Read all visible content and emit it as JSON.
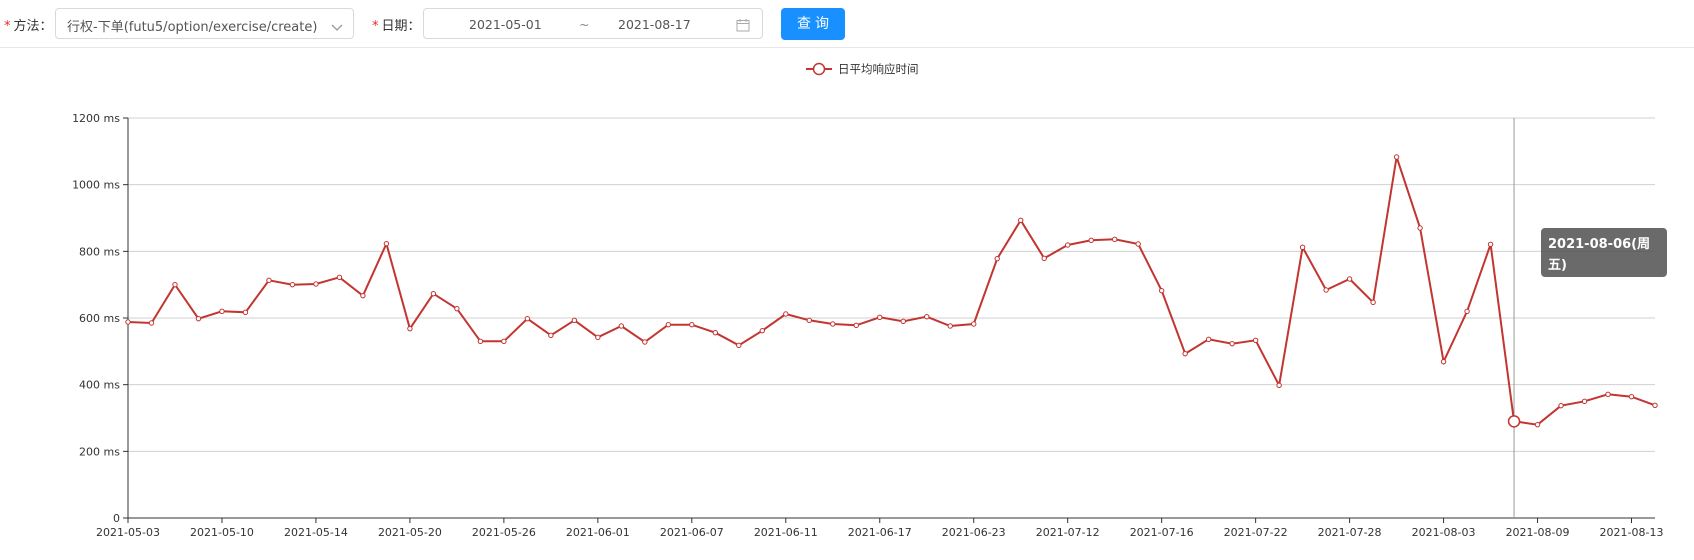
{
  "form": {
    "method_label": "方法：",
    "method_value": "行权-下单(futu5/option/exercise/create)",
    "date_label": "日期：",
    "date_start": "2021-05-01",
    "date_sep": "~",
    "date_end": "2021-08-17",
    "query_button": "查询",
    "required_mark": "*"
  },
  "tooltip": {
    "date": "2021-08-06(周五)",
    "value": "289.91 ms"
  },
  "colors": {
    "series": "#c23531",
    "button": "#1890ff",
    "grid": "#d0d0d0"
  },
  "chart_data": {
    "type": "line",
    "legend": [
      "日平均响应时间"
    ],
    "legend_position": "top-center",
    "grid": true,
    "ylim": [
      0,
      1200
    ],
    "yticks": [
      "0",
      "200 ms",
      "400 ms",
      "600 ms",
      "800 ms",
      "1000 ms",
      "1200 ms"
    ],
    "xtick_labels": [
      "2021-05-03",
      "2021-05-10",
      "2021-05-14",
      "2021-05-20",
      "2021-05-26",
      "2021-06-01",
      "2021-06-07",
      "2021-06-11",
      "2021-06-17",
      "2021-06-23",
      "2021-07-12",
      "2021-07-16",
      "2021-07-22",
      "2021-07-28",
      "2021-08-03",
      "2021-08-09",
      "2021-08-13"
    ],
    "series": [
      {
        "name": "日平均响应时间",
        "values": [
          588,
          585,
          700,
          598,
          620,
          617,
          713,
          700,
          702,
          722,
          667,
          823,
          568,
          673,
          628,
          530,
          530,
          598,
          548,
          593,
          542,
          576,
          528,
          580,
          580,
          556,
          518,
          562,
          612,
          593,
          582,
          578,
          602,
          590,
          604,
          576,
          582,
          778,
          893,
          779,
          819,
          833,
          836,
          822,
          682,
          493,
          536,
          523,
          533,
          398,
          812,
          684,
          717,
          647,
          1083,
          870,
          469,
          620,
          821,
          290,
          280,
          337,
          350,
          371,
          364,
          338
        ]
      }
    ],
    "highlight_index": 59
  }
}
